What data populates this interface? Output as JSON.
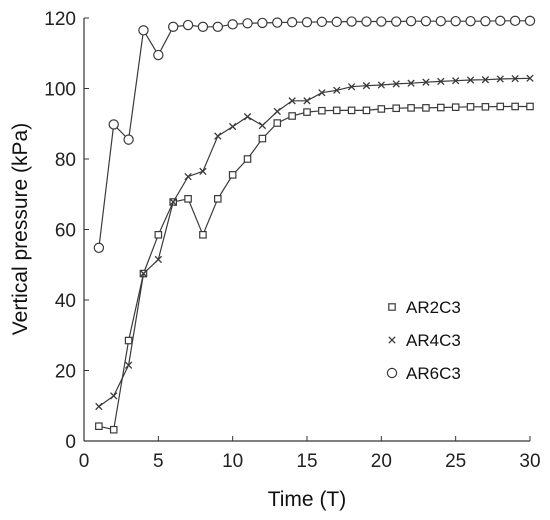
{
  "chart_data": {
    "type": "line",
    "xlabel": "Time (T)",
    "ylabel": "Vertical pressure (kPa)",
    "xlim": [
      0,
      30
    ],
    "ylim": [
      0,
      120
    ],
    "xticks": [
      "0",
      "5",
      "10",
      "15",
      "20",
      "25",
      "30"
    ],
    "yticks": [
      "0",
      "20",
      "40",
      "60",
      "80",
      "100",
      "120"
    ],
    "grid": false,
    "legend_position": "right, lower-middle",
    "series": [
      {
        "name": "AR2C3",
        "marker": "square",
        "color": "#3a3a3a",
        "x": [
          1,
          2,
          3,
          4,
          5,
          6,
          7,
          8,
          9,
          10,
          11,
          12,
          13,
          14,
          15,
          16,
          17,
          18,
          19,
          20,
          21,
          22,
          23,
          24,
          25,
          26,
          27,
          28,
          29,
          30
        ],
        "y": [
          4.2,
          3.2,
          28.5,
          47.5,
          58.5,
          67.8,
          68.7,
          58.5,
          68.7,
          75.5,
          80,
          85.8,
          90.2,
          92.2,
          93.3,
          93.7,
          93.8,
          93.8,
          93.8,
          94.2,
          94.4,
          94.5,
          94.5,
          94.6,
          94.7,
          94.8,
          94.8,
          94.9,
          94.9,
          94.9
        ]
      },
      {
        "name": "AR4C3",
        "marker": "x",
        "color": "#3a3a3a",
        "x": [
          1,
          2,
          3,
          4,
          5,
          6,
          7,
          8,
          9,
          10,
          11,
          12,
          13,
          14,
          15,
          16,
          17,
          18,
          19,
          20,
          21,
          22,
          23,
          24,
          25,
          26,
          27,
          28,
          29,
          30
        ],
        "y": [
          9.8,
          12.8,
          21.5,
          47.5,
          51.5,
          67.8,
          75,
          76.5,
          86.5,
          89.2,
          92,
          89.5,
          93.5,
          96.5,
          96.5,
          98.8,
          99.5,
          100.5,
          100.8,
          101,
          101.3,
          101.5,
          101.8,
          102,
          102.2,
          102.4,
          102.5,
          102.7,
          102.8,
          102.9
        ]
      },
      {
        "name": "AR6C3",
        "marker": "circle",
        "color": "#3a3a3a",
        "x": [
          1,
          2,
          3,
          4,
          5,
          6,
          7,
          8,
          9,
          10,
          11,
          12,
          13,
          14,
          15,
          16,
          17,
          18,
          19,
          20,
          21,
          22,
          23,
          24,
          25,
          26,
          27,
          28,
          29,
          30
        ],
        "y": [
          54.8,
          89.8,
          85.5,
          116.5,
          109.5,
          117.5,
          118,
          117.5,
          117.5,
          118.2,
          118.5,
          118.6,
          118.7,
          118.8,
          118.8,
          118.9,
          118.9,
          119,
          119,
          119,
          119,
          119.1,
          119.1,
          119.1,
          119.1,
          119.1,
          119.1,
          119.2,
          119.2,
          119.2
        ]
      }
    ]
  }
}
